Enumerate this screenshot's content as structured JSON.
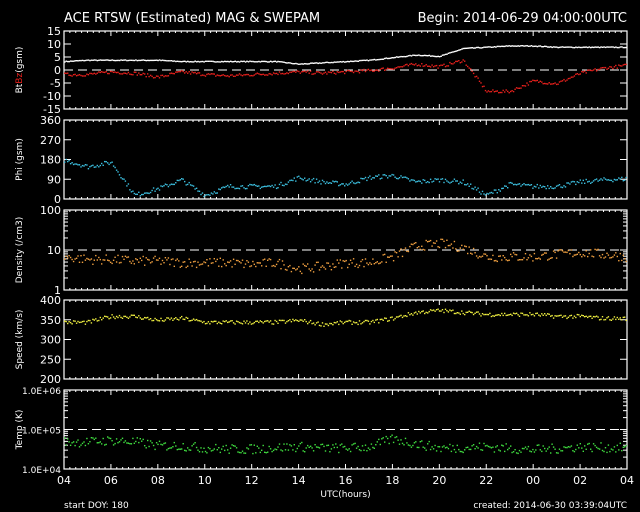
{
  "header": {
    "title": "ACE RTSW (Estimated) MAG & SWEPAM",
    "begin": "Begin: 2014-06-29 04:00:00UTC"
  },
  "footer": {
    "start_doy": "start DOY: 180",
    "created": "created: 2014-06-30 03:39:04UTC"
  },
  "colors": {
    "bt": "#ffffff",
    "bz": "#e8201c",
    "phi": "#3cc0e0",
    "density": "#f0a040",
    "speed": "#f0f040",
    "temp": "#40e040",
    "axis": "#ffffff"
  },
  "chart_data": [
    {
      "type": "scatter",
      "title": "Bt / Bz",
      "ylabel_parts": [
        "Bt",
        "Bz",
        "(gsm)"
      ],
      "ylim": [
        -15,
        15
      ],
      "yticks": [
        "15",
        "10",
        "5",
        "0",
        "-5",
        "-10",
        "-15"
      ],
      "ytick_values": [
        15,
        10,
        5,
        0,
        -5,
        -10,
        -15
      ],
      "dashed_reference": 0,
      "x_hours": [
        0,
        1,
        2,
        3,
        4,
        5,
        6,
        7,
        8,
        9,
        10,
        11,
        12,
        13,
        14,
        15,
        16,
        17,
        18,
        19,
        20,
        21,
        22,
        23,
        24
      ],
      "series": [
        {
          "name": "Bt",
          "color_key": "bt",
          "values": [
            3.5,
            4,
            4,
            4,
            4,
            3.5,
            3.5,
            3.5,
            3.5,
            3.5,
            2.5,
            3,
            3.5,
            4,
            5,
            6,
            5.5,
            8.5,
            9,
            9.5,
            9.5,
            9,
            9,
            9,
            9
          ]
        },
        {
          "name": "Bz",
          "color_key": "bz",
          "values": [
            -1.5,
            -1.5,
            -0.5,
            -1,
            -2.5,
            -0.5,
            -1.5,
            -2,
            -1.5,
            -1,
            -0.5,
            -1,
            -0.5,
            0,
            1,
            2.5,
            1.5,
            4,
            -8,
            -8,
            -4,
            -5,
            -1,
            1,
            2
          ]
        }
      ]
    },
    {
      "type": "scatter",
      "ylabel": "Phi (gsm)",
      "ylim": [
        0,
        360
      ],
      "yticks": [
        "360",
        "270",
        "180",
        "90",
        "0"
      ],
      "ytick_values": [
        360,
        270,
        180,
        90,
        0
      ],
      "x_hours": [
        0,
        1,
        2,
        3,
        4,
        5,
        6,
        7,
        8,
        9,
        10,
        11,
        12,
        13,
        14,
        15,
        16,
        17,
        18,
        19,
        20,
        21,
        22,
        23,
        24
      ],
      "series": [
        {
          "name": "Phi",
          "color_key": "phi",
          "values": [
            180,
            150,
            170,
            20,
            50,
            90,
            20,
            60,
            60,
            60,
            100,
            80,
            70,
            100,
            110,
            80,
            90,
            80,
            20,
            70,
            60,
            60,
            80,
            90,
            95
          ]
        }
      ]
    },
    {
      "type": "scatter",
      "ylabel": "Density (/cm3)",
      "yscale": "log",
      "ylim": [
        1,
        100
      ],
      "yticks": [
        "100",
        "10",
        "1"
      ],
      "ytick_values": [
        100,
        10,
        1
      ],
      "dashed_reference": 10,
      "x_hours": [
        0,
        1,
        2,
        3,
        4,
        5,
        6,
        7,
        8,
        9,
        10,
        11,
        12,
        13,
        14,
        15,
        16,
        17,
        18,
        19,
        20,
        21,
        22,
        23,
        24
      ],
      "series": [
        {
          "name": "Density",
          "color_key": "density",
          "values": [
            7,
            6,
            6,
            5.5,
            5.5,
            5,
            5,
            5,
            4.5,
            5,
            3.5,
            4,
            5,
            5,
            7,
            13,
            15,
            12,
            7,
            7,
            7,
            8,
            9,
            8,
            7
          ]
        }
      ]
    },
    {
      "type": "scatter",
      "ylabel": "Speed (km/s)",
      "ylim": [
        200,
        400
      ],
      "yticks": [
        "400",
        "350",
        "300",
        "250",
        "200"
      ],
      "ytick_values": [
        400,
        350,
        300,
        250,
        200
      ],
      "x_hours": [
        0,
        1,
        2,
        3,
        4,
        5,
        6,
        7,
        8,
        9,
        10,
        11,
        12,
        13,
        14,
        15,
        16,
        17,
        18,
        19,
        20,
        21,
        22,
        23,
        24
      ],
      "series": [
        {
          "name": "Speed",
          "color_key": "speed",
          "values": [
            345,
            345,
            360,
            360,
            350,
            355,
            345,
            345,
            345,
            345,
            350,
            340,
            345,
            345,
            355,
            370,
            375,
            370,
            365,
            365,
            365,
            360,
            360,
            355,
            355
          ]
        }
      ]
    },
    {
      "type": "scatter",
      "ylabel": "Temp (K)",
      "yscale": "log",
      "ylim": [
        10000,
        1000000
      ],
      "yticks": [
        "1.0E+06",
        "1.0E+05",
        "1.0E+04"
      ],
      "ytick_values": [
        1000000,
        100000,
        10000
      ],
      "dashed_reference": 100000,
      "xlabel": "UTC(hours)",
      "xticks": [
        "04",
        "06",
        "08",
        "10",
        "12",
        "14",
        "16",
        "18",
        "20",
        "22",
        "00",
        "02",
        "04"
      ],
      "x_hours": [
        0,
        1,
        2,
        3,
        4,
        5,
        6,
        7,
        8,
        9,
        10,
        11,
        12,
        13,
        14,
        15,
        16,
        17,
        18,
        19,
        20,
        21,
        22,
        23,
        24
      ],
      "series": [
        {
          "name": "Temp",
          "color_key": "temp",
          "values": [
            50000,
            50000,
            55000,
            50000,
            40000,
            40000,
            35000,
            33000,
            33000,
            36000,
            38000,
            35000,
            35000,
            38000,
            60000,
            45000,
            35000,
            36000,
            38000,
            34000,
            32000,
            34000,
            38000,
            36000,
            35000
          ]
        }
      ]
    }
  ]
}
